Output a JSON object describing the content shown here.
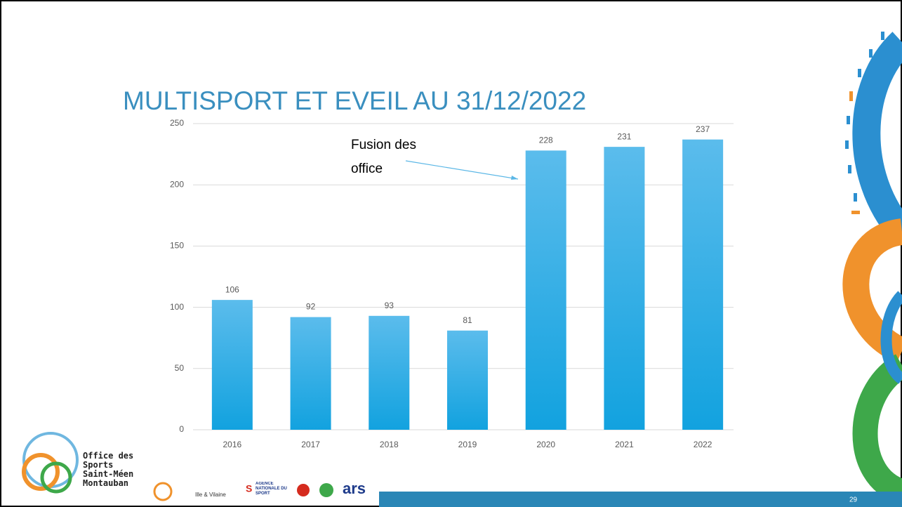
{
  "chart_data": {
    "type": "bar",
    "title": "MULTISPORT ET EVEIL AU 31/12/2022",
    "categories": [
      "2016",
      "2017",
      "2018",
      "2019",
      "2020",
      "2021",
      "2022"
    ],
    "values": [
      106,
      92,
      93,
      81,
      228,
      231,
      237
    ],
    "color": "#29aae3",
    "ylim": [
      0,
      250
    ],
    "yticks": [
      0,
      50,
      100,
      150,
      200,
      250
    ],
    "grid": true,
    "annotation": "Fusion des office"
  },
  "footer": {
    "organization": "Office des Sports Saint-Méen Montauban",
    "partners": [
      "Ille & Vilaine",
      "AGENCE NATIONALE DU SPORT",
      "ars"
    ],
    "page_number": "29"
  }
}
